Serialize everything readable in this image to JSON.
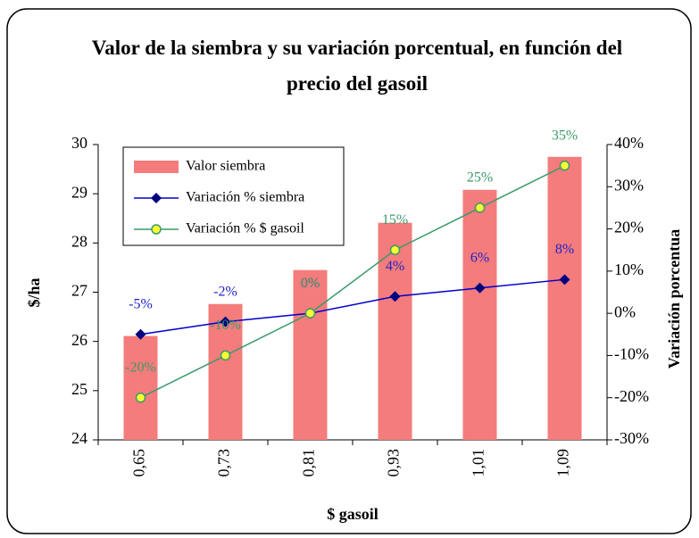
{
  "chart_data": {
    "type": "bar_line",
    "title": "Valor de la siembra y su variación porcentual, en función del precio del gasoil",
    "xlabel": "$ gasoil",
    "ylabel": "$/ha",
    "y2label": "Variación porcentua",
    "categories": [
      "0,65",
      "0,73",
      "0,81",
      "0,93",
      "1,01",
      "1,09"
    ],
    "series": [
      {
        "name": "Valor siembra",
        "type": "bar",
        "color": "#f47c7c",
        "values": [
          26.11,
          26.76,
          27.45,
          28.41,
          29.08,
          29.75
        ]
      },
      {
        "name": "Variación % siembra",
        "type": "line",
        "axis": "y2",
        "color": "#0000cc",
        "label_color": "#2020c8",
        "values": [
          -5,
          -2,
          0,
          4,
          6,
          8
        ],
        "value_labels": [
          "-5%",
          "-2%",
          "0%",
          "4%",
          "6%",
          "8%"
        ]
      },
      {
        "name": "Variación % $ gasoil",
        "type": "line",
        "axis": "y2",
        "color": "#3a9a6a",
        "label_color": "#3a9a6a",
        "values": [
          -20,
          -10,
          0,
          15,
          25,
          35
        ],
        "value_labels": [
          "-20%",
          "-10%",
          "0%",
          "15%",
          "25%",
          "35%"
        ]
      }
    ],
    "ylim": [
      24,
      30
    ],
    "yticks": [
      24,
      25,
      26,
      27,
      28,
      29,
      30
    ],
    "y2lim": [
      -30,
      40
    ],
    "y2ticks": [
      {
        "value": -30,
        "label": "-30%"
      },
      {
        "value": -20,
        "label": "-20%"
      },
      {
        "value": -10,
        "label": "-10%"
      },
      {
        "value": 0,
        "label": "0%"
      },
      {
        "value": 10,
        "label": "10%"
      },
      {
        "value": 20,
        "label": "20%"
      },
      {
        "value": 30,
        "label": "30%"
      },
      {
        "value": 40,
        "label": "40%"
      }
    ],
    "legend": "upper left",
    "grid": false
  }
}
